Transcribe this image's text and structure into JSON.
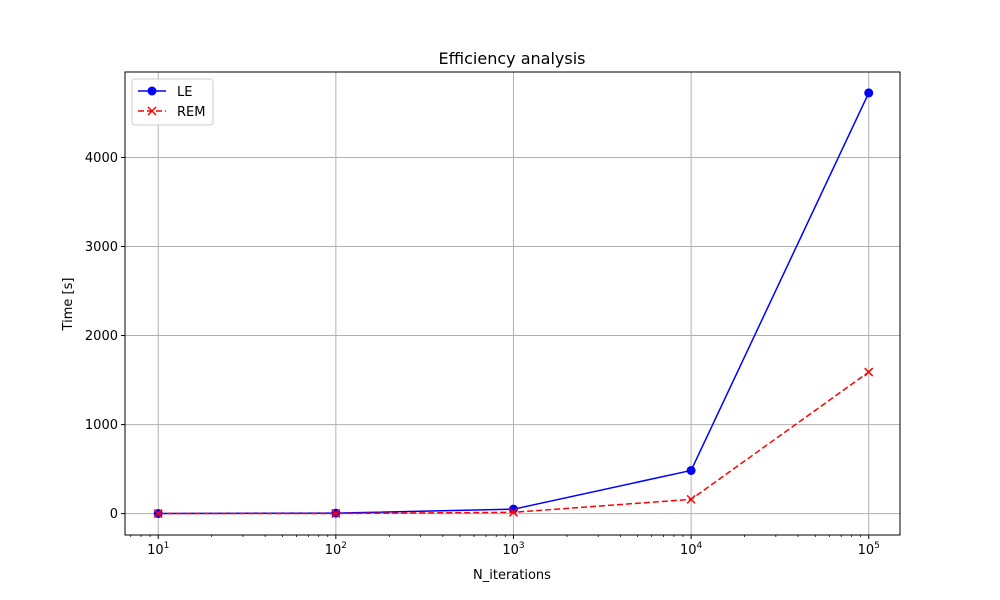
{
  "chart_data": {
    "type": "line",
    "title": "Efficiency analysis",
    "xlabel": "N_iterations",
    "ylabel": "Time [s]",
    "xscale": "log",
    "xlim": [
      6.5,
      150000
    ],
    "ylim": [
      -240,
      4960
    ],
    "grid": true,
    "legend_position": "top-left",
    "x": [
      10,
      100,
      1000,
      10000,
      100000
    ],
    "x_tick_labels": [
      {
        "value": 10,
        "base": "10",
        "exp": "1"
      },
      {
        "value": 100,
        "base": "10",
        "exp": "2"
      },
      {
        "value": 1000,
        "base": "10",
        "exp": "3"
      },
      {
        "value": 10000,
        "base": "10",
        "exp": "4"
      },
      {
        "value": 100000,
        "base": "10",
        "exp": "5"
      }
    ],
    "y_ticks": [
      0,
      1000,
      2000,
      3000,
      4000
    ],
    "y_tick_labels": [
      "0",
      "1000",
      "2000",
      "3000",
      "4000"
    ],
    "series": [
      {
        "name": "LE",
        "color": "#0000ff",
        "linestyle": "solid",
        "marker": "circle",
        "values": [
          1,
          6,
          50,
          485,
          4725
        ]
      },
      {
        "name": "REM",
        "color": "#ff0000",
        "linestyle": "dashed",
        "marker": "x",
        "values": [
          1,
          2,
          15,
          160,
          1590
        ]
      }
    ],
    "colors": {
      "grid": "#b0b0b0",
      "axes": "#000000"
    }
  }
}
